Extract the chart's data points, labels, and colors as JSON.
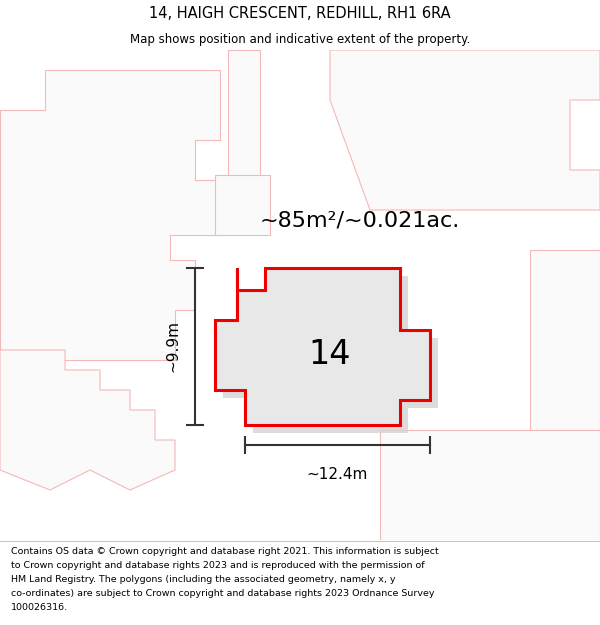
{
  "title": "14, HAIGH CRESCENT, REDHILL, RH1 6RA",
  "subtitle": "Map shows position and indicative extent of the property.",
  "area_label": "~85m²/~0.021ac.",
  "number_label": "14",
  "width_label": "~12.4m",
  "height_label": "~9.9m",
  "footer_lines": [
    "Contains OS data © Crown copyright and database right 2021. This information is subject",
    "to Crown copyright and database rights 2023 and is reproduced with the permission of",
    "HM Land Registry. The polygons (including the associated geometry, namely x, y",
    "co-ordinates) are subject to Crown copyright and database rights 2023 Ordnance Survey",
    "100026316."
  ],
  "bg_color": "#f0f0f0",
  "main_polygon_fill": "#e8e8e8",
  "main_polygon_edge": "#ee0000",
  "shadow_fill": "#d4d4d4",
  "nearby_edge": "#f5b8b8",
  "nearby_fill": "#fafafa",
  "dim_line_color": "#333333",
  "title_fontsize": 10.5,
  "subtitle_fontsize": 8.5,
  "area_fontsize": 16,
  "number_fontsize": 24,
  "dim_fontsize": 11,
  "footer_fontsize": 6.8
}
